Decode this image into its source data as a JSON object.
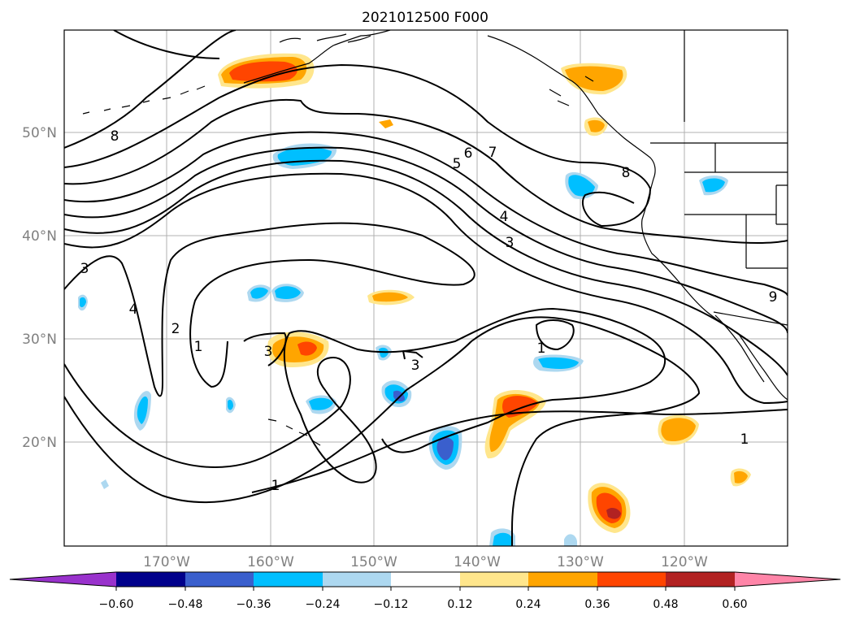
{
  "title": "2021012500 F000",
  "map": {
    "lon_labels": [
      "170°W",
      "160°W",
      "150°W",
      "140°W",
      "130°W",
      "120°W"
    ],
    "lat_labels": [
      "50°N",
      "40°N",
      "30°N",
      "20°N"
    ],
    "contour_labels": [
      "8",
      "6",
      "7",
      "5",
      "4",
      "3",
      "8",
      "3",
      "4",
      "2",
      "1",
      "3",
      "3",
      "1",
      "1",
      "1",
      "9"
    ],
    "contour_color": "#000000",
    "grid_color": "#b0b0b0"
  },
  "colorbar": {
    "ticks": [
      "−0.60",
      "−0.48",
      "−0.36",
      "−0.24",
      "−0.12",
      "0.12",
      "0.24",
      "0.36",
      "0.48",
      "0.60"
    ],
    "colors": [
      "#9932cc",
      "#00008b",
      "#3a5fcd",
      "#00bfff",
      "#add8f0",
      "#ffffff",
      "#ffe68c",
      "#ffa500",
      "#ff4500",
      "#b22222",
      "#ff85a8"
    ]
  }
}
